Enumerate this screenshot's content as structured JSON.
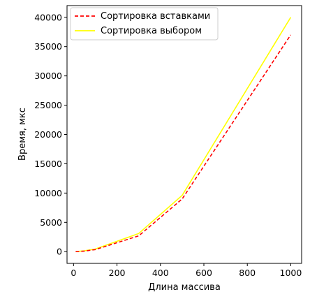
{
  "chart_data": {
    "type": "line",
    "title": "",
    "xlabel": "Длина массива",
    "ylabel": "Время, мкс",
    "xlim": [
      -30,
      1050
    ],
    "ylim": [
      -2000,
      42000
    ],
    "xticks": [
      0,
      200,
      400,
      600,
      800,
      1000
    ],
    "yticks": [
      0,
      5000,
      10000,
      15000,
      20000,
      25000,
      30000,
      35000,
      40000
    ],
    "grid": false,
    "legend_position": "top-left",
    "series": [
      {
        "name": "Сортировка вставками",
        "color": "#ff0000",
        "style": "dashed",
        "x": [
          10,
          50,
          100,
          300,
          500,
          1000
        ],
        "y": [
          0,
          100,
          350,
          2700,
          9000,
          37000
        ]
      },
      {
        "name": "Сортировка выбором",
        "color": "#ffff00",
        "style": "solid",
        "x": [
          10,
          50,
          100,
          300,
          500,
          1000
        ],
        "y": [
          0,
          150,
          450,
          3100,
          9600,
          40000
        ]
      }
    ]
  }
}
